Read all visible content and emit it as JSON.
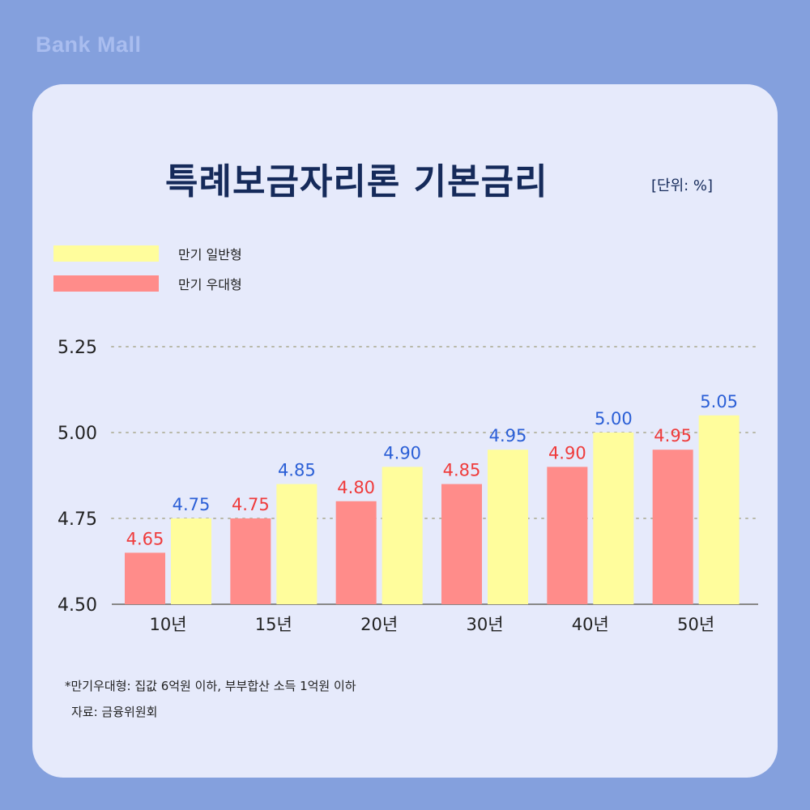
{
  "brand": "Bank Mall",
  "title": "특례보금자리론 기본금리",
  "unit": "[단위: %]",
  "legend": [
    {
      "label": "만기 일반형",
      "color": "#fffd9c"
    },
    {
      "label": "만기 우대형",
      "color": "#ff8c8a"
    }
  ],
  "colors": {
    "general_label": "#2b5fd6",
    "preferred_label": "#ef3b3b",
    "grid": "#b8b8a8",
    "axis": "#888888"
  },
  "chart_data": {
    "type": "bar",
    "categories": [
      "10년",
      "15년",
      "20년",
      "30년",
      "40년",
      "50년"
    ],
    "series": [
      {
        "name": "만기 우대형",
        "values": [
          4.65,
          4.75,
          4.8,
          4.85,
          4.9,
          4.95
        ],
        "color": "#ff8c8a"
      },
      {
        "name": "만기 일반형",
        "values": [
          4.75,
          4.85,
          4.9,
          4.95,
          5.0,
          5.05
        ],
        "color": "#fffd9c"
      }
    ],
    "value_labels": {
      "만기 우대형": [
        "4.65",
        "4.75",
        "4.80",
        "4.85",
        "4.90",
        "4.95"
      ],
      "만기 일반형": [
        "4.75",
        "4.85",
        "4.90",
        "4.95",
        "5.00",
        "5.05"
      ]
    },
    "ylim": [
      4.5,
      5.25
    ],
    "yticks": [
      "4.50",
      "4.75",
      "5.00",
      "5.25"
    ],
    "ytick_values": [
      4.5,
      4.75,
      5.0,
      5.25
    ],
    "grid": true,
    "title": "특례보금자리론 기본금리"
  },
  "footnotes": [
    "*만기우대형: 집값 6억원 이하, 부부합산 소득 1억원 이하",
    "자료: 금융위원회"
  ]
}
